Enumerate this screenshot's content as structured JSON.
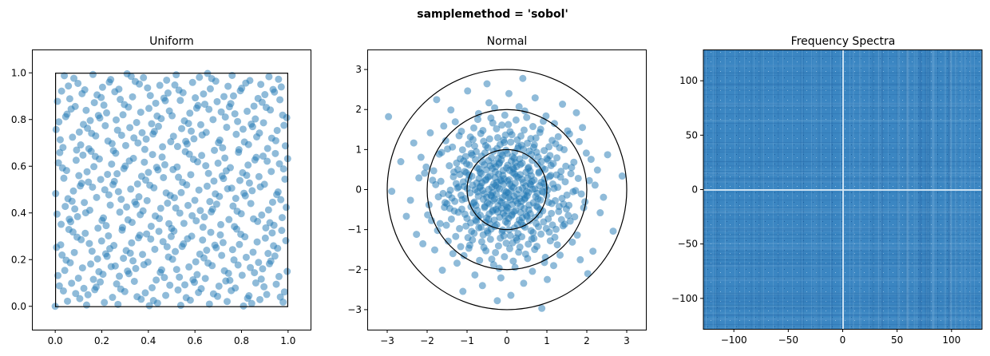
{
  "figure": {
    "suptitle": "samplemethod = 'sobol'"
  },
  "chart_data": [
    {
      "type": "scatter",
      "title": "Uniform",
      "xlabel": "",
      "ylabel": "",
      "xlim": [
        -0.1,
        1.1
      ],
      "ylim": [
        -0.1,
        1.1
      ],
      "x_ticks": [
        "0.0",
        "0.2",
        "0.4",
        "0.6",
        "0.8",
        "1.0"
      ],
      "y_ticks": [
        "0.0",
        "0.2",
        "0.4",
        "0.6",
        "0.8",
        "1.0"
      ],
      "overlay": "unit square [0,1]x[0,1]",
      "sample_count": 512,
      "marker_color": "#1f77b4",
      "marker_alpha": 0.5
    },
    {
      "type": "scatter",
      "title": "Normal",
      "xlabel": "",
      "ylabel": "",
      "xlim": [
        -3.5,
        3.5
      ],
      "ylim": [
        -3.5,
        3.5
      ],
      "x_ticks": [
        "−3",
        "−2",
        "−1",
        "0",
        "1",
        "2",
        "3"
      ],
      "y_ticks": [
        "−3",
        "−2",
        "−1",
        "0",
        "1",
        "2",
        "3"
      ],
      "circle_radii": [
        1,
        2,
        3
      ],
      "sample_count": 512,
      "marker_color": "#1f77b4",
      "marker_alpha": 0.5
    },
    {
      "type": "heatmap",
      "title": "Frequency Spectra",
      "xlabel": "",
      "ylabel": "",
      "xlim": [
        -128,
        128
      ],
      "ylim": [
        -128,
        128
      ],
      "x_ticks": [
        "−100",
        "−50",
        "0",
        "50",
        "100"
      ],
      "y_ticks": [
        "−100",
        "−50",
        "0",
        "50",
        "100"
      ],
      "colormap": "Blues",
      "base_color": "#3a86c3",
      "highlight": "bright cross along x=0 and y=0"
    }
  ]
}
